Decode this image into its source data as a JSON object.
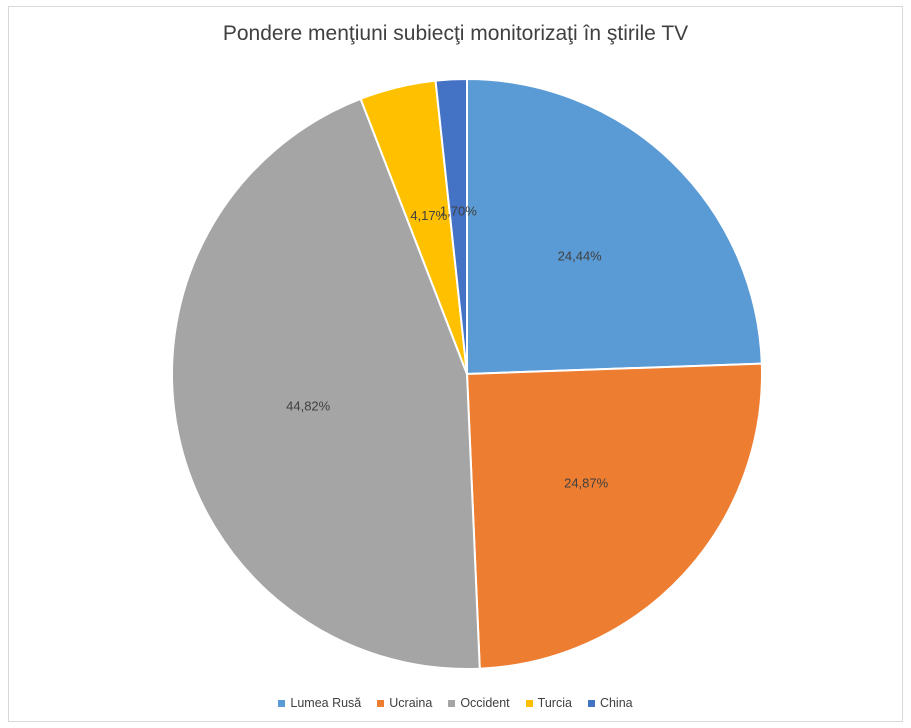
{
  "chart_data": {
    "type": "pie",
    "title": "Pondere menţiuni subiecţi monitorizaţi în ştirile TV",
    "categories": [
      "Lumea Rusă",
      "Ucraina",
      "Occident",
      "Turcia",
      "China"
    ],
    "values": [
      24.44,
      24.87,
      44.82,
      4.17,
      1.7
    ],
    "labels": [
      "24,44%",
      "24,87%",
      "44,82%",
      "4,17%",
      "1,70%"
    ],
    "colors": [
      "#5b9bd5",
      "#ed7d31",
      "#a5a5a5",
      "#ffc000",
      "#4472c4"
    ],
    "legend_position": "bottom"
  }
}
